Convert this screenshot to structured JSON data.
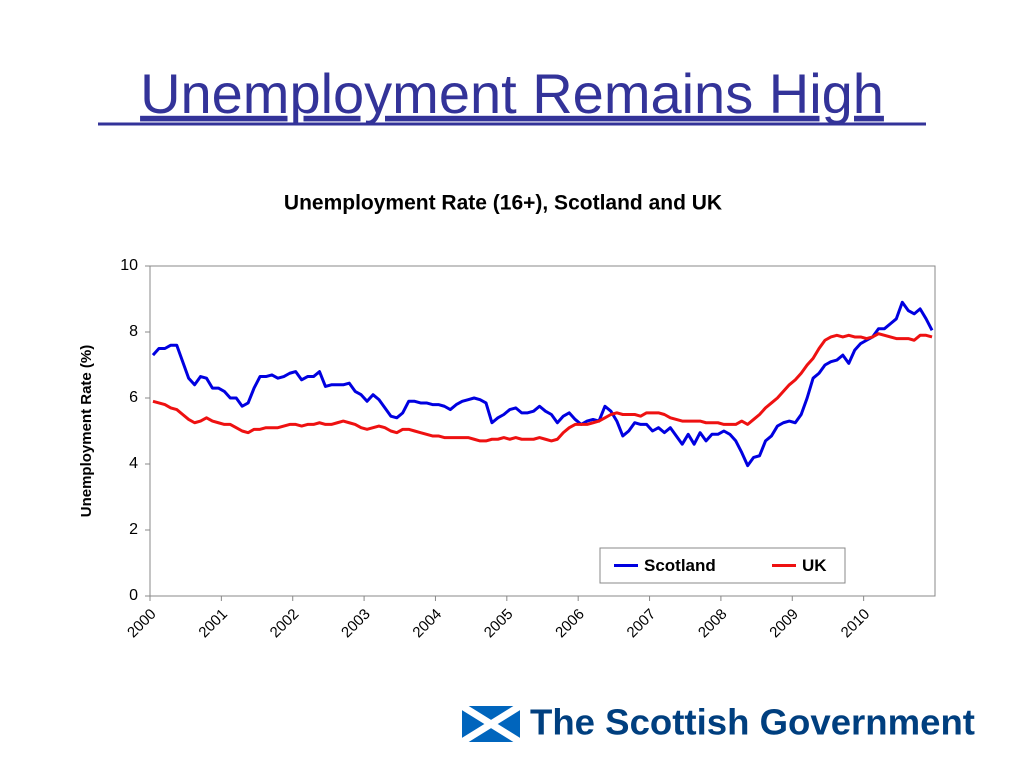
{
  "slide_title": "Unemployment Remains High",
  "logo": {
    "text": "The Scottish Government"
  },
  "chart_data": {
    "type": "line",
    "title": "Unemployment Rate (16+), Scotland and UK",
    "y_label": "Unemployment Rate (%)",
    "categories": [
      "2000",
      null,
      null,
      null,
      null,
      null,
      null,
      null,
      null,
      null,
      null,
      null,
      "2001",
      null,
      null,
      null,
      null,
      null,
      null,
      null,
      null,
      null,
      null,
      null,
      "2002",
      null,
      null,
      null,
      null,
      null,
      null,
      null,
      null,
      null,
      null,
      null,
      "2003",
      null,
      null,
      null,
      null,
      null,
      null,
      null,
      null,
      null,
      null,
      null,
      "2004",
      null,
      null,
      null,
      null,
      null,
      null,
      null,
      null,
      null,
      null,
      null,
      "2005",
      null,
      null,
      null,
      null,
      null,
      null,
      null,
      null,
      null,
      null,
      null,
      "2006",
      null,
      null,
      null,
      null,
      null,
      null,
      null,
      null,
      null,
      null,
      null,
      "2007",
      null,
      null,
      null,
      null,
      null,
      null,
      null,
      null,
      null,
      null,
      null,
      "2008",
      null,
      null,
      null,
      null,
      null,
      null,
      null,
      null,
      null,
      null,
      null,
      "2009",
      null,
      null,
      null,
      null,
      null,
      null,
      null,
      null,
      null,
      null,
      null,
      "2010",
      null,
      null,
      null,
      null,
      null,
      null,
      null,
      null,
      null,
      null,
      null
    ],
    "series": [
      {
        "name": "Scotland",
        "color": "#0000e0",
        "values": [
          7.3,
          7.5,
          7.5,
          7.6,
          7.6,
          7.1,
          6.6,
          6.4,
          6.65,
          6.6,
          6.3,
          6.3,
          6.2,
          6.0,
          6.0,
          5.75,
          5.85,
          6.3,
          6.65,
          6.65,
          6.7,
          6.6,
          6.65,
          6.75,
          6.8,
          6.55,
          6.65,
          6.65,
          6.8,
          6.35,
          6.4,
          6.4,
          6.4,
          6.45,
          6.2,
          6.1,
          5.9,
          6.1,
          5.95,
          5.7,
          5.45,
          5.4,
          5.55,
          5.9,
          5.9,
          5.85,
          5.85,
          5.8,
          5.8,
          5.75,
          5.65,
          5.8,
          5.9,
          5.95,
          6.0,
          5.95,
          5.85,
          5.25,
          5.4,
          5.5,
          5.65,
          5.7,
          5.55,
          5.55,
          5.6,
          5.75,
          5.6,
          5.5,
          5.25,
          5.45,
          5.55,
          5.35,
          5.2,
          5.3,
          5.35,
          5.3,
          5.75,
          5.6,
          5.3,
          4.85,
          5.0,
          5.25,
          5.2,
          5.2,
          5.0,
          5.1,
          4.95,
          5.1,
          4.85,
          4.6,
          4.9,
          4.6,
          4.95,
          4.7,
          4.9,
          4.9,
          5.0,
          4.9,
          4.7,
          4.35,
          3.95,
          4.2,
          4.25,
          4.7,
          4.85,
          5.15,
          5.25,
          5.3,
          5.25,
          5.5,
          6.0,
          6.6,
          6.75,
          7.0,
          7.1,
          7.15,
          7.3,
          7.05,
          7.45,
          7.65,
          7.75,
          7.85,
          8.1,
          8.1,
          8.25,
          8.4,
          8.9,
          8.65,
          8.55,
          8.7,
          8.4,
          8.05
        ]
      },
      {
        "name": "UK",
        "color": "#ee1111",
        "values": [
          5.9,
          5.85,
          5.8,
          5.7,
          5.65,
          5.5,
          5.35,
          5.25,
          5.3,
          5.4,
          5.3,
          5.25,
          5.2,
          5.2,
          5.1,
          5.0,
          4.95,
          5.05,
          5.05,
          5.1,
          5.1,
          5.1,
          5.15,
          5.2,
          5.2,
          5.15,
          5.2,
          5.2,
          5.25,
          5.2,
          5.2,
          5.25,
          5.3,
          5.25,
          5.2,
          5.1,
          5.05,
          5.1,
          5.15,
          5.1,
          5.0,
          4.95,
          5.05,
          5.05,
          5.0,
          4.95,
          4.9,
          4.85,
          4.85,
          4.8,
          4.8,
          4.8,
          4.8,
          4.8,
          4.75,
          4.7,
          4.7,
          4.75,
          4.75,
          4.8,
          4.75,
          4.8,
          4.75,
          4.75,
          4.75,
          4.8,
          4.75,
          4.7,
          4.75,
          4.95,
          5.1,
          5.2,
          5.2,
          5.2,
          5.25,
          5.3,
          5.4,
          5.5,
          5.55,
          5.5,
          5.5,
          5.5,
          5.45,
          5.55,
          5.55,
          5.55,
          5.5,
          5.4,
          5.35,
          5.3,
          5.3,
          5.3,
          5.3,
          5.25,
          5.25,
          5.25,
          5.2,
          5.2,
          5.2,
          5.3,
          5.2,
          5.35,
          5.5,
          5.7,
          5.85,
          6.0,
          6.2,
          6.4,
          6.55,
          6.75,
          7.0,
          7.2,
          7.5,
          7.75,
          7.85,
          7.9,
          7.85,
          7.9,
          7.85,
          7.85,
          7.8,
          7.85,
          7.95,
          7.9,
          7.85,
          7.8,
          7.8,
          7.8,
          7.75,
          7.9,
          7.9,
          7.85
        ]
      }
    ],
    "ylim": [
      0,
      10
    ],
    "yticks": [
      0,
      2,
      4,
      6,
      8,
      10
    ],
    "grid": false,
    "legend": "bottom-right"
  }
}
